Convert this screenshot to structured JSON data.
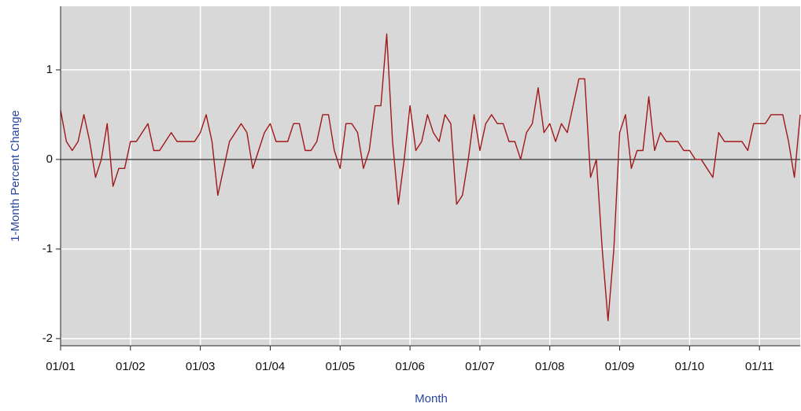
{
  "chart_data": {
    "type": "line",
    "x_label": "Month",
    "y_label": "1-Month Percent Change",
    "categories": [
      "01/01",
      null,
      null,
      null,
      null,
      null,
      null,
      null,
      null,
      null,
      null,
      null,
      "01/02",
      null,
      null,
      null,
      null,
      null,
      null,
      null,
      null,
      null,
      null,
      null,
      "01/03",
      null,
      null,
      null,
      null,
      null,
      null,
      null,
      null,
      null,
      null,
      null,
      "01/04",
      null,
      null,
      null,
      null,
      null,
      null,
      null,
      null,
      null,
      null,
      null,
      "01/05",
      null,
      null,
      null,
      null,
      null,
      null,
      null,
      null,
      null,
      null,
      null,
      "01/06",
      null,
      null,
      null,
      null,
      null,
      null,
      null,
      null,
      null,
      null,
      null,
      "01/07",
      null,
      null,
      null,
      null,
      null,
      null,
      null,
      null,
      null,
      null,
      null,
      "01/08",
      null,
      null,
      null,
      null,
      null,
      null,
      null,
      null,
      null,
      null,
      null,
      "01/09",
      null,
      null,
      null,
      null,
      null,
      null,
      null,
      null,
      null,
      null,
      null,
      "01/10",
      null,
      null,
      null,
      null,
      null,
      null,
      null,
      null,
      null,
      null,
      null,
      "01/11",
      null,
      null,
      null,
      null,
      null,
      null,
      null
    ],
    "values": [
      0.55,
      0.2,
      0.1,
      0.2,
      0.5,
      0.2,
      -0.2,
      0.0,
      0.4,
      -0.3,
      -0.1,
      -0.1,
      0.2,
      0.2,
      0.3,
      0.4,
      0.1,
      0.1,
      0.2,
      0.3,
      0.2,
      0.2,
      0.2,
      0.2,
      0.3,
      0.5,
      0.2,
      -0.4,
      -0.1,
      0.2,
      0.3,
      0.4,
      0.3,
      -0.1,
      0.1,
      0.3,
      0.4,
      0.2,
      0.2,
      0.2,
      0.4,
      0.4,
      0.1,
      0.1,
      0.2,
      0.5,
      0.5,
      0.1,
      -0.1,
      0.4,
      0.4,
      0.3,
      -0.1,
      0.1,
      0.6,
      0.6,
      1.4,
      0.2,
      -0.5,
      0.0,
      0.6,
      0.1,
      0.2,
      0.5,
      0.3,
      0.2,
      0.5,
      0.4,
      -0.5,
      -0.4,
      0.0,
      0.5,
      0.1,
      0.4,
      0.5,
      0.4,
      0.4,
      0.2,
      0.2,
      0.0,
      0.3,
      0.4,
      0.8,
      0.3,
      0.4,
      0.2,
      0.4,
      0.3,
      0.6,
      0.9,
      0.9,
      -0.2,
      0.0,
      -1.0,
      -1.8,
      -1.0,
      0.3,
      0.5,
      -0.1,
      0.1,
      0.1,
      0.7,
      0.1,
      0.3,
      0.2,
      0.2,
      0.2,
      0.1,
      0.1,
      0.0,
      0.0,
      -0.1,
      -0.2,
      0.3,
      0.2,
      0.2,
      0.2,
      0.2,
      0.1,
      0.4,
      0.4,
      0.4,
      0.5,
      0.5,
      0.5,
      0.2,
      -0.2,
      0.5
    ],
    "color": "#a01818",
    "ylim": [
      -2.08,
      1.71
    ],
    "yticks": [
      -2,
      -1,
      0,
      1
    ],
    "grid": true
  }
}
